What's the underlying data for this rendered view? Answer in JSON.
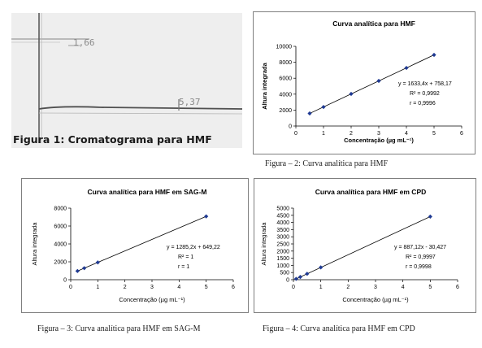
{
  "figure1": {
    "caption": "Figura 1: Cromatograma para HMF",
    "peak_labels": [
      "1,66",
      "5,37"
    ]
  },
  "chart_data": [
    {
      "id": "hmf",
      "type": "scatter",
      "title": "Curva analítica para HMF",
      "xlabel": "Concentração (µg mL⁻¹)",
      "ylabel": "Altura integrada",
      "xlim": [
        0,
        6
      ],
      "ylim": [
        0,
        10000
      ],
      "xticks": [
        0,
        1,
        2,
        3,
        4,
        5,
        6
      ],
      "yticks": [
        0,
        2000,
        4000,
        6000,
        8000,
        10000
      ],
      "grid": false,
      "trendline": true,
      "x": [
        0.5,
        1,
        2,
        3,
        4,
        5
      ],
      "y": [
        1580,
        2390,
        4030,
        5660,
        7290,
        8930
      ],
      "equation": "y = 1633,4x + 758,17",
      "r2": "R² = 0,9992",
      "r": "r = 0,9996",
      "caption": "Figura – 2: Curva analítica para HMF",
      "marker_color": "#1f3a93"
    },
    {
      "id": "sagm",
      "type": "scatter",
      "title": "Curva analítica para HMF em SAG-M",
      "xlabel": "Concentração (µg mL⁻¹)",
      "ylabel": "Altura integrada",
      "xlim": [
        0,
        6
      ],
      "ylim": [
        0,
        8000
      ],
      "xticks": [
        0,
        1,
        2,
        3,
        4,
        5,
        6
      ],
      "yticks": [
        0,
        2000,
        4000,
        6000,
        8000
      ],
      "grid": false,
      "trendline": true,
      "x": [
        0.25,
        0.5,
        1,
        5
      ],
      "y": [
        970,
        1290,
        1930,
        7080
      ],
      "equation": "y = 1285,2x + 649,22",
      "r2": "R² = 1",
      "r": "r = 1",
      "caption": "Figura – 3: Curva analítica para HMF em SAG-M",
      "marker_color": "#1f3a93"
    },
    {
      "id": "cpd",
      "type": "scatter",
      "title": "Curva analítica para HMF em CPD",
      "xlabel": "Concentração (µg mL⁻¹)",
      "ylabel": "Altura integrada",
      "xlim": [
        0,
        6
      ],
      "ylim": [
        0,
        5000
      ],
      "xticks": [
        0,
        1,
        2,
        3,
        4,
        5,
        6
      ],
      "yticks": [
        0,
        500,
        1000,
        1500,
        2000,
        2500,
        3000,
        3500,
        4000,
        4500,
        5000
      ],
      "grid": false,
      "trendline": true,
      "x": [
        0.1,
        0.25,
        0.5,
        1,
        5
      ],
      "y": [
        60,
        190,
        410,
        860,
        4410
      ],
      "equation": "y = 887,12x - 30,427",
      "r2": "R² = 0,9997",
      "r": "r = 0,9998",
      "caption": "Figura – 4: Curva analítica para HMF em CPD",
      "marker_color": "#1f3a93"
    }
  ]
}
